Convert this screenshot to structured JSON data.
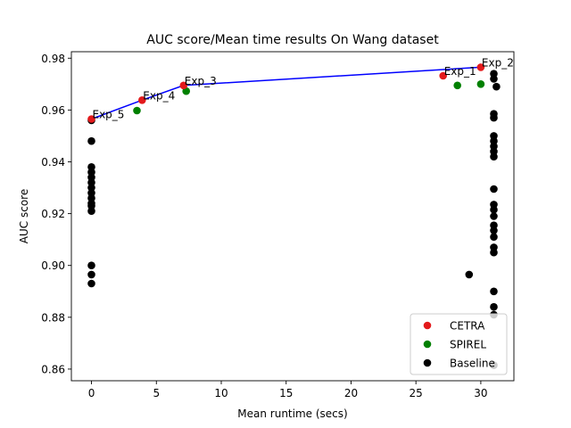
{
  "chart_data": {
    "type": "scatter",
    "title": "AUC score/Mean time results On Wang dataset",
    "xlabel": "Mean runtime (secs)",
    "ylabel": "AUC score",
    "xlim": [
      -1.55,
      32.55
    ],
    "ylim": [
      0.8555,
      0.9825
    ],
    "xticks": [
      0,
      5,
      10,
      15,
      20,
      25,
      30
    ],
    "yticks": [
      0.86,
      0.88,
      0.9,
      0.92,
      0.94,
      0.96,
      0.98
    ],
    "ytick_labels": [
      "0.86",
      "0.88",
      "0.90",
      "0.92",
      "0.94",
      "0.96",
      "0.98"
    ],
    "grid": false,
    "legend_position": "lower-right",
    "line": {
      "color": "#0000ff",
      "points": [
        [
          0.0,
          0.9565
        ],
        [
          3.9,
          0.9638
        ],
        [
          7.1,
          0.9695
        ],
        [
          30.0,
          0.9765
        ]
      ]
    },
    "series": [
      {
        "name": "CETRA",
        "color": "#e31a1c",
        "points": [
          [
            0.0,
            0.9565
          ],
          [
            3.9,
            0.9638
          ],
          [
            7.1,
            0.9695
          ],
          [
            27.1,
            0.9732
          ],
          [
            30.0,
            0.9765
          ]
        ]
      },
      {
        "name": "SPIREL",
        "color": "#008000",
        "points": [
          [
            3.5,
            0.9598
          ],
          [
            7.3,
            0.9673
          ],
          [
            28.2,
            0.9695
          ],
          [
            30.0,
            0.97
          ]
        ]
      },
      {
        "name": "Baseline",
        "color": "#000000",
        "points": [
          [
            0.0,
            0.956
          ],
          [
            0.0,
            0.948
          ],
          [
            0.0,
            0.938
          ],
          [
            0.0,
            0.936
          ],
          [
            0.0,
            0.934
          ],
          [
            0.0,
            0.932
          ],
          [
            0.0,
            0.93
          ],
          [
            0.0,
            0.928
          ],
          [
            0.0,
            0.926
          ],
          [
            0.0,
            0.924
          ],
          [
            0.0,
            0.923
          ],
          [
            0.0,
            0.921
          ],
          [
            0.0,
            0.9
          ],
          [
            0.0,
            0.8965
          ],
          [
            0.0,
            0.893
          ],
          [
            29.1,
            0.8965
          ],
          [
            31.0,
            0.974
          ],
          [
            31.0,
            0.972
          ],
          [
            31.2,
            0.969
          ],
          [
            31.0,
            0.9585
          ],
          [
            31.0,
            0.957
          ],
          [
            31.0,
            0.95
          ],
          [
            31.0,
            0.948
          ],
          [
            31.0,
            0.946
          ],
          [
            31.0,
            0.944
          ],
          [
            31.0,
            0.942
          ],
          [
            31.0,
            0.9295
          ],
          [
            31.0,
            0.9235
          ],
          [
            31.0,
            0.9215
          ],
          [
            31.0,
            0.919
          ],
          [
            31.0,
            0.9155
          ],
          [
            31.0,
            0.9135
          ],
          [
            31.0,
            0.911
          ],
          [
            31.0,
            0.907
          ],
          [
            31.0,
            0.905
          ],
          [
            31.0,
            0.89
          ],
          [
            31.0,
            0.884
          ],
          [
            31.0,
            0.881
          ],
          [
            31.0,
            0.8615
          ]
        ]
      }
    ],
    "annotations": [
      {
        "text": "Exp_5",
        "x": 0.0,
        "y": 0.9565
      },
      {
        "text": "Exp_4",
        "x": 3.9,
        "y": 0.9638
      },
      {
        "text": "Exp_3",
        "x": 7.1,
        "y": 0.9695
      },
      {
        "text": "Exp_1",
        "x": 27.1,
        "y": 0.9732
      },
      {
        "text": "Exp_2",
        "x": 30.0,
        "y": 0.9765
      }
    ]
  }
}
